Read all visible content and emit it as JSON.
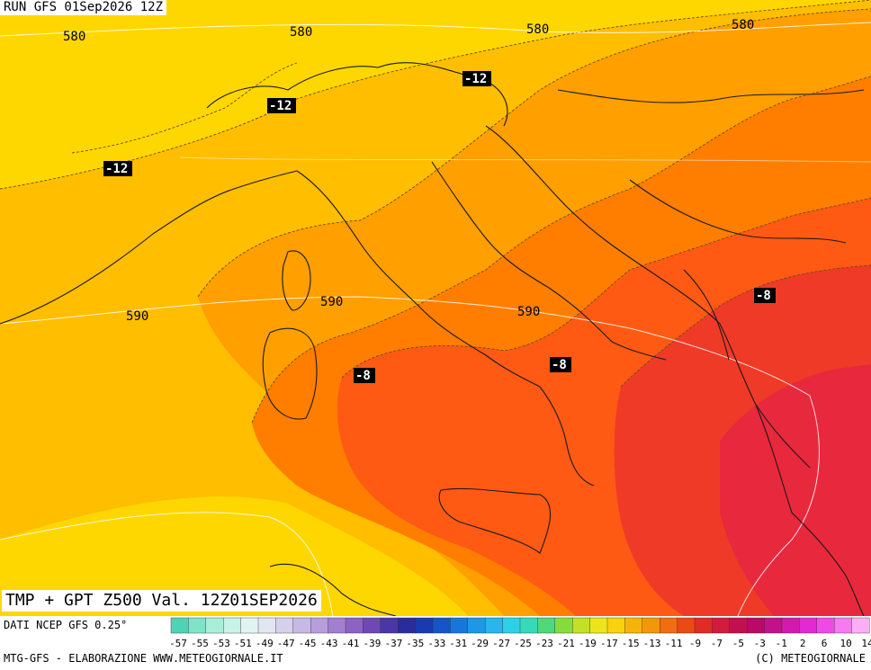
{
  "header": {
    "run_label": "RUN GFS 01Sep2026 12Z"
  },
  "title": "TMP + GPT Z500 Val. 12Z01SEP2026",
  "source_label": "DATI NCEP GFS 0.25°",
  "footer": {
    "left": "MTG-GFS - ELABORAZIONE WWW.METEOGIORNALE.IT",
    "right": "(C) METEOGIORNALE"
  },
  "geopotential_labels": [
    "580",
    "580",
    "580",
    "580",
    "590",
    "590",
    "590"
  ],
  "temperature_labels": [
    "-12",
    "-12",
    "-12",
    "-8",
    "-8",
    "-8"
  ],
  "colorbar": {
    "ticks": [
      "-57",
      "-55",
      "-53",
      "-51",
      "-49",
      "-47",
      "-45",
      "-43",
      "-41",
      "-39",
      "-37",
      "-35",
      "-33",
      "-31",
      "-29",
      "-27",
      "-25",
      "-23",
      "-21",
      "-19",
      "-17",
      "-15",
      "-13",
      "-11",
      "-9",
      "-7",
      "-5",
      "-3",
      "-1",
      "2",
      "6",
      "10",
      "14"
    ],
    "colors": [
      "#4fd3b5",
      "#7fe3c7",
      "#a9eed9",
      "#c9f2e8",
      "#e2f4f2",
      "#e3e6f2",
      "#d6d0ec",
      "#c7b8e4",
      "#b79ddb",
      "#a27fd0",
      "#8d62c4",
      "#6f48b6",
      "#4b36a8",
      "#2a2c9c",
      "#1a3ab0",
      "#1456c8",
      "#1776dc",
      "#1e97e6",
      "#28b6ec",
      "#2ed0e8",
      "#36d9b8",
      "#4ed97a",
      "#86dc3c",
      "#c2e028",
      "#eee41c",
      "#f8d20e",
      "#f6b40a",
      "#f4960c",
      "#f06e10",
      "#ea4a14",
      "#e02c24",
      "#d01c3a",
      "#c2104e",
      "#b80a66",
      "#c0128a",
      "#d21ab0",
      "#e22ad2",
      "#ee4ae8",
      "#f77af2",
      "#fbb0f6"
    ]
  },
  "map_colors": {
    "yellow": "#ffd700",
    "yellow_orange": "#ffbe00",
    "orange": "#ff9f00",
    "dark_orange": "#ff7e00",
    "red_orange": "#ff5a14",
    "red": "#f03a28",
    "crimson": "#e8283c"
  }
}
